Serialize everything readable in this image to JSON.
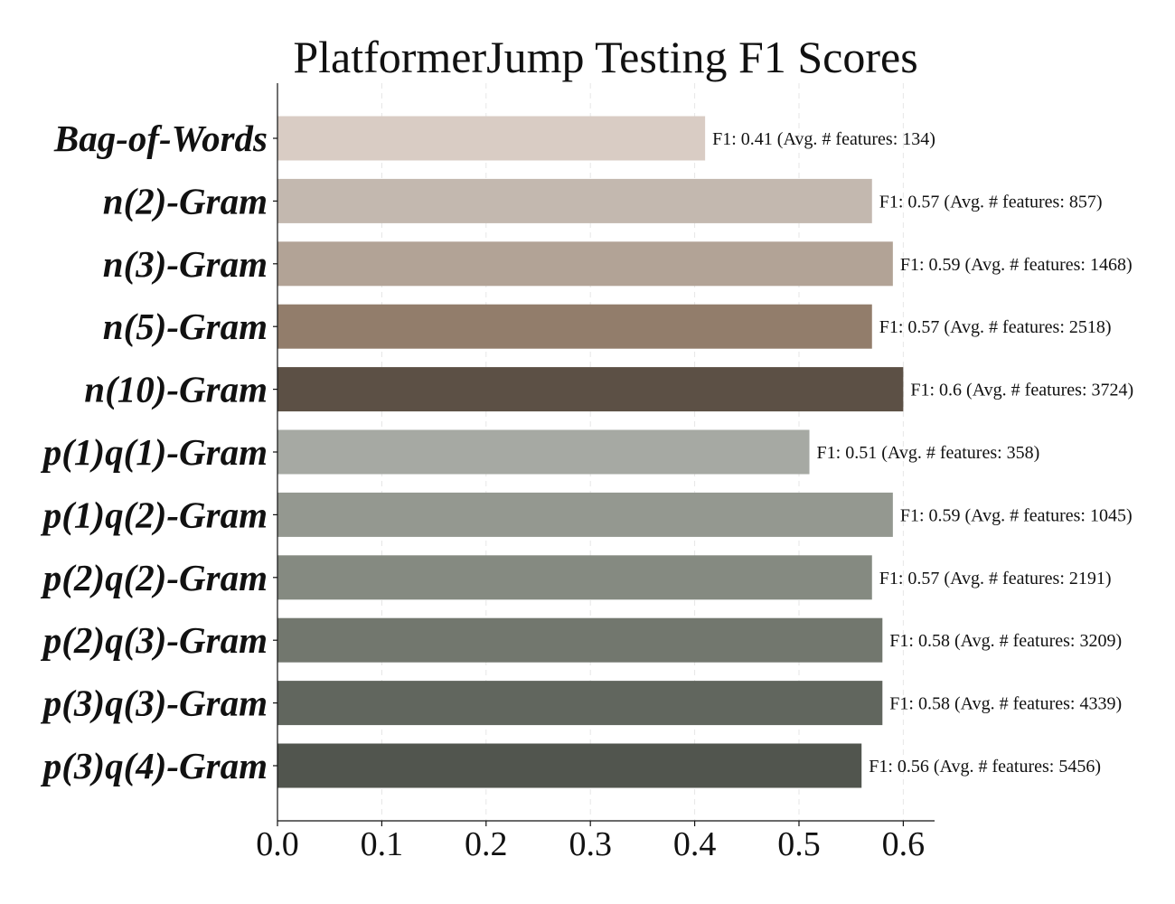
{
  "chart_data": {
    "type": "bar",
    "orientation": "horizontal",
    "title": "PlatformerJump Testing F1 Scores",
    "xlabel": "",
    "ylabel": "",
    "xlim": [
      0,
      0.63
    ],
    "xticks": [
      0.0,
      0.1,
      0.2,
      0.3,
      0.4,
      0.5,
      0.6
    ],
    "xtick_labels": [
      "0.0",
      "0.1",
      "0.2",
      "0.3",
      "0.4",
      "0.5",
      "0.6"
    ],
    "grid": "vertical dashed",
    "categories": [
      "Bag-of-Words",
      "n(2)-Gram",
      "n(3)-Gram",
      "n(5)-Gram",
      "n(10)-Gram",
      "p(1)q(1)-Gram",
      "p(1)q(2)-Gram",
      "p(2)q(2)-Gram",
      "p(2)q(3)-Gram",
      "p(3)q(3)-Gram",
      "p(3)q(4)-Gram"
    ],
    "values": [
      0.41,
      0.57,
      0.59,
      0.57,
      0.6,
      0.51,
      0.59,
      0.57,
      0.58,
      0.58,
      0.56
    ],
    "avg_features": [
      134,
      857,
      1468,
      2518,
      3724,
      358,
      1045,
      2191,
      3209,
      4339,
      5456
    ],
    "data_labels": [
      "F1: 0.41 (Avg. # features: 134)",
      "F1: 0.57 (Avg. # features: 857)",
      "F1: 0.59 (Avg. # features: 1468)",
      "F1: 0.57 (Avg. # features: 2518)",
      "F1: 0.6 (Avg. # features: 3724)",
      "F1: 0.51 (Avg. # features: 358)",
      "F1: 0.59 (Avg. # features: 1045)",
      "F1: 0.57 (Avg. # features: 2191)",
      "F1: 0.58 (Avg. # features: 3209)",
      "F1: 0.58 (Avg. # features: 4339)",
      "F1: 0.56 (Avg. # features: 5456)"
    ],
    "colors": [
      "#d9ccc4",
      "#c3b8af",
      "#b2a396",
      "#927d6b",
      "#5c5045",
      "#a6a9a3",
      "#949890",
      "#858a81",
      "#72776e",
      "#61665e",
      "#51554e"
    ]
  }
}
